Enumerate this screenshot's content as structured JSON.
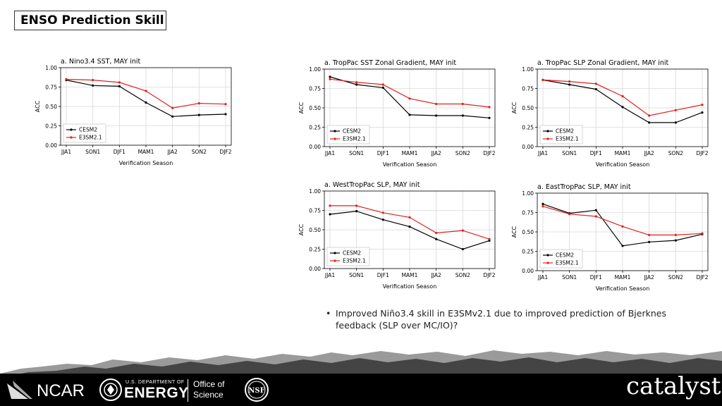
{
  "slide": {
    "title": "ENSO Prediction Skill",
    "bullet": "Improved Niño3.4 skill in E3SMv2.1 due to improved prediction of Bjerknes feedback (SLP over MC/IO)?"
  },
  "logos": {
    "ncar": "NCAR",
    "doe_small": "U.S. DEPARTMENT OF",
    "doe_big": "ENERGY",
    "office_line1": "Office of",
    "office_line2": "Science",
    "nsf": "NSF",
    "catalyst": "catalyst"
  },
  "colors": {
    "cesm2": "#000000",
    "e3sm": "#e02020",
    "grid": "#d8d8d8"
  },
  "chart_data": [
    {
      "type": "line",
      "title": "a. Nino3.4 SST, MAY init",
      "xlabel": "Verification Season",
      "ylabel": "ACC",
      "categories": [
        "JJA1",
        "SON1",
        "DJF1",
        "MAM1",
        "JJA2",
        "SON2",
        "DJF2"
      ],
      "ylim": [
        0,
        1
      ],
      "yticks": [
        "0.00",
        "0.25",
        "0.50",
        "0.75",
        "1.00"
      ],
      "grid": true,
      "legend": "lower-left",
      "series": [
        {
          "name": "CESM2",
          "values": [
            0.84,
            0.77,
            0.76,
            0.55,
            0.37,
            0.39,
            0.4
          ]
        },
        {
          "name": "E3SM2.1",
          "values": [
            0.85,
            0.84,
            0.81,
            0.7,
            0.48,
            0.54,
            0.53
          ]
        }
      ]
    },
    {
      "type": "line",
      "title": "a. TropPac SST Zonal Gradient, MAY init",
      "xlabel": "Verification Season",
      "ylabel": "ACC",
      "categories": [
        "JJA1",
        "SON1",
        "DJF1",
        "MAM1",
        "JJA2",
        "SON2",
        "DJF2"
      ],
      "ylim": [
        0,
        1
      ],
      "yticks": [
        "0.00",
        "0.25",
        "0.50",
        "0.75",
        "1.00"
      ],
      "grid": true,
      "legend": "lower-left",
      "series": [
        {
          "name": "CESM2",
          "values": [
            0.9,
            0.8,
            0.76,
            0.41,
            0.4,
            0.4,
            0.37
          ]
        },
        {
          "name": "E3SM2.1",
          "values": [
            0.87,
            0.83,
            0.8,
            0.62,
            0.55,
            0.55,
            0.51
          ]
        }
      ]
    },
    {
      "type": "line",
      "title": "a. TropPac SLP Zonal Gradient, MAY init",
      "xlabel": "Verification Season",
      "ylabel": "ACC",
      "categories": [
        "JJA1",
        "SON1",
        "DJF1",
        "MAM1",
        "JJA2",
        "SON2",
        "DJF2"
      ],
      "ylim": [
        0,
        1
      ],
      "yticks": [
        "0.00",
        "0.25",
        "0.50",
        "0.75",
        "1.00"
      ],
      "grid": true,
      "legend": "lower-left",
      "series": [
        {
          "name": "CESM2",
          "values": [
            0.86,
            0.8,
            0.74,
            0.51,
            0.31,
            0.31,
            0.44
          ]
        },
        {
          "name": "E3SM2.1",
          "values": [
            0.86,
            0.84,
            0.81,
            0.65,
            0.4,
            0.47,
            0.54
          ]
        }
      ]
    },
    {
      "type": "line",
      "title": "a. WestTropPac SLP, MAY init",
      "xlabel": "Verification Season",
      "ylabel": "ACC",
      "categories": [
        "JJA1",
        "SON1",
        "DJF1",
        "MAM1",
        "JJA2",
        "SON2",
        "DJF2"
      ],
      "ylim": [
        0,
        1
      ],
      "yticks": [
        "0.00",
        "0.25",
        "0.50",
        "0.75",
        "1.00"
      ],
      "grid": true,
      "legend": "lower-left",
      "series": [
        {
          "name": "CESM2",
          "values": [
            0.7,
            0.74,
            0.63,
            0.54,
            0.38,
            0.25,
            0.36
          ]
        },
        {
          "name": "E3SM2.1",
          "values": [
            0.81,
            0.81,
            0.72,
            0.66,
            0.46,
            0.49,
            0.38
          ]
        }
      ]
    },
    {
      "type": "line",
      "title": "a. EastTropPac SLP, MAY init",
      "xlabel": "Verification Season",
      "ylabel": "ACC",
      "categories": [
        "JJA1",
        "SON1",
        "DJF1",
        "MAM1",
        "JJA2",
        "SON2",
        "DJF2"
      ],
      "ylim": [
        0,
        1
      ],
      "yticks": [
        "0.00",
        "0.25",
        "0.50",
        "0.75",
        "1.00"
      ],
      "grid": true,
      "legend": "lower-left",
      "series": [
        {
          "name": "CESM2",
          "values": [
            0.86,
            0.74,
            0.78,
            0.32,
            0.37,
            0.39,
            0.47
          ]
        },
        {
          "name": "E3SM2.1",
          "values": [
            0.83,
            0.73,
            0.7,
            0.57,
            0.46,
            0.46,
            0.48
          ]
        }
      ]
    }
  ]
}
